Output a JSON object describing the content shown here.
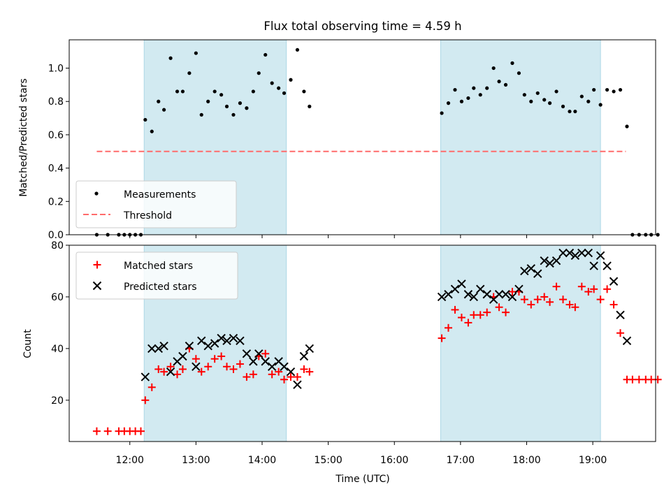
{
  "colors": {
    "shade": "#add8e6",
    "measurement": "#000000",
    "threshold": "#ff6b6b",
    "matched": "#ff0000",
    "predicted": "#000000"
  },
  "chart_data": [
    {
      "type": "scatter",
      "title": "Flux total observing time = 4.59 h",
      "xlabel": "",
      "ylabel": "Matched/Predicted stars",
      "xlim": [
        "11:05",
        "19:57"
      ],
      "ylim": [
        0,
        1.17
      ],
      "yticks": [
        "0.0",
        "0.2",
        "0.4",
        "0.6",
        "0.8",
        "1.0"
      ],
      "shaded_intervals": [
        [
          "12:13",
          "14:22"
        ],
        [
          "16:42",
          "19:07"
        ]
      ],
      "legend": {
        "position": "lower-left",
        "entries": [
          "Measurements",
          "Threshold"
        ]
      },
      "threshold": {
        "name": "Threshold",
        "y": 0.5,
        "x_range": [
          "11:30",
          "19:30"
        ],
        "style": "dashed"
      },
      "series": [
        {
          "name": "Measurements",
          "marker": "dot",
          "points": [
            [
              "11:30",
              0
            ],
            [
              "11:40",
              0
            ],
            [
              "11:50",
              0
            ],
            [
              "11:55",
              0
            ],
            [
              "12:00",
              0
            ],
            [
              "12:05",
              0
            ],
            [
              "12:10",
              0
            ],
            [
              "12:14",
              0.69
            ],
            [
              "12:20",
              0.62
            ],
            [
              "12:26",
              0.8
            ],
            [
              "12:31",
              0.75
            ],
            [
              "12:37",
              1.06
            ],
            [
              "12:43",
              0.86
            ],
            [
              "12:48",
              0.86
            ],
            [
              "12:54",
              0.97
            ],
            [
              "13:00",
              1.09
            ],
            [
              "13:05",
              0.72
            ],
            [
              "13:11",
              0.8
            ],
            [
              "13:17",
              0.86
            ],
            [
              "13:23",
              0.84
            ],
            [
              "13:28",
              0.77
            ],
            [
              "13:34",
              0.72
            ],
            [
              "13:40",
              0.79
            ],
            [
              "13:46",
              0.76
            ],
            [
              "13:52",
              0.86
            ],
            [
              "13:57",
              0.97
            ],
            [
              "14:03",
              1.08
            ],
            [
              "14:09",
              0.91
            ],
            [
              "14:15",
              0.88
            ],
            [
              "14:20",
              0.85
            ],
            [
              "14:26",
              0.93
            ],
            [
              "14:32",
              1.11
            ],
            [
              "14:38",
              0.86
            ],
            [
              "14:43",
              0.77
            ],
            [
              "16:43",
              0.73
            ],
            [
              "16:49",
              0.79
            ],
            [
              "16:55",
              0.87
            ],
            [
              "17:01",
              0.8
            ],
            [
              "17:07",
              0.82
            ],
            [
              "17:12",
              0.88
            ],
            [
              "17:18",
              0.84
            ],
            [
              "17:24",
              0.88
            ],
            [
              "17:30",
              1.0
            ],
            [
              "17:35",
              0.92
            ],
            [
              "17:41",
              0.9
            ],
            [
              "17:47",
              1.03
            ],
            [
              "17:53",
              0.97
            ],
            [
              "17:58",
              0.84
            ],
            [
              "18:04",
              0.8
            ],
            [
              "18:10",
              0.85
            ],
            [
              "18:16",
              0.81
            ],
            [
              "18:21",
              0.79
            ],
            [
              "18:27",
              0.86
            ],
            [
              "18:33",
              0.77
            ],
            [
              "18:39",
              0.74
            ],
            [
              "18:44",
              0.74
            ],
            [
              "18:50",
              0.83
            ],
            [
              "18:56",
              0.8
            ],
            [
              "19:01",
              0.87
            ],
            [
              "19:07",
              0.78
            ],
            [
              "19:13",
              0.87
            ],
            [
              "19:19",
              0.86
            ],
            [
              "19:25",
              0.87
            ],
            [
              "19:31",
              0.65
            ],
            [
              "19:36",
              0
            ],
            [
              "19:42",
              0
            ],
            [
              "19:48",
              0
            ],
            [
              "19:53",
              0
            ],
            [
              "19:59",
              0
            ]
          ]
        }
      ]
    },
    {
      "type": "scatter",
      "title": "",
      "xlabel": "Time (UTC)",
      "ylabel": "Count",
      "xlim": [
        "11:05",
        "19:57"
      ],
      "ylim": [
        4,
        80
      ],
      "xticks": [
        "12:00",
        "13:00",
        "14:00",
        "15:00",
        "16:00",
        "17:00",
        "18:00",
        "19:00"
      ],
      "yticks": [
        "20",
        "40",
        "60",
        "80"
      ],
      "shaded_intervals": [
        [
          "12:13",
          "14:22"
        ],
        [
          "16:42",
          "19:07"
        ]
      ],
      "legend": {
        "position": "upper-left",
        "entries": [
          "Matched stars",
          "Predicted stars"
        ]
      },
      "series": [
        {
          "name": "Matched stars",
          "marker": "plus",
          "points": [
            [
              "11:30",
              8
            ],
            [
              "11:40",
              8
            ],
            [
              "11:50",
              8
            ],
            [
              "11:55",
              8
            ],
            [
              "12:00",
              8
            ],
            [
              "12:05",
              8
            ],
            [
              "12:10",
              8
            ],
            [
              "12:14",
              20
            ],
            [
              "12:20",
              25
            ],
            [
              "12:26",
              32
            ],
            [
              "12:31",
              31
            ],
            [
              "12:37",
              33
            ],
            [
              "12:43",
              30
            ],
            [
              "12:48",
              32
            ],
            [
              "12:54",
              40
            ],
            [
              "13:00",
              36
            ],
            [
              "13:05",
              31
            ],
            [
              "13:11",
              33
            ],
            [
              "13:17",
              36
            ],
            [
              "13:23",
              37
            ],
            [
              "13:28",
              33
            ],
            [
              "13:34",
              32
            ],
            [
              "13:40",
              34
            ],
            [
              "13:46",
              29
            ],
            [
              "13:52",
              30
            ],
            [
              "13:57",
              37
            ],
            [
              "14:03",
              38
            ],
            [
              "14:09",
              30
            ],
            [
              "14:15",
              31
            ],
            [
              "14:20",
              28
            ],
            [
              "14:26",
              29
            ],
            [
              "14:32",
              29
            ],
            [
              "14:38",
              32
            ],
            [
              "14:43",
              31
            ],
            [
              "16:43",
              44
            ],
            [
              "16:49",
              48
            ],
            [
              "16:55",
              55
            ],
            [
              "17:01",
              52
            ],
            [
              "17:07",
              50
            ],
            [
              "17:12",
              53
            ],
            [
              "17:18",
              53
            ],
            [
              "17:24",
              54
            ],
            [
              "17:30",
              60
            ],
            [
              "17:35",
              56
            ],
            [
              "17:41",
              54
            ],
            [
              "17:47",
              62
            ],
            [
              "17:53",
              62
            ],
            [
              "17:58",
              59
            ],
            [
              "18:04",
              57
            ],
            [
              "18:10",
              59
            ],
            [
              "18:16",
              60
            ],
            [
              "18:21",
              58
            ],
            [
              "18:27",
              64
            ],
            [
              "18:33",
              59
            ],
            [
              "18:39",
              57
            ],
            [
              "18:44",
              56
            ],
            [
              "18:50",
              64
            ],
            [
              "18:56",
              62
            ],
            [
              "19:01",
              63
            ],
            [
              "19:07",
              59
            ],
            [
              "19:13",
              63
            ],
            [
              "19:19",
              57
            ],
            [
              "19:25",
              46
            ],
            [
              "19:31",
              28
            ],
            [
              "19:36",
              28
            ],
            [
              "19:42",
              28
            ],
            [
              "19:48",
              28
            ],
            [
              "19:53",
              28
            ],
            [
              "19:59",
              28
            ]
          ]
        },
        {
          "name": "Predicted stars",
          "marker": "x",
          "points": [
            [
              "12:14",
              29
            ],
            [
              "12:20",
              40
            ],
            [
              "12:26",
              40
            ],
            [
              "12:31",
              41
            ],
            [
              "12:37",
              31
            ],
            [
              "12:43",
              35
            ],
            [
              "12:48",
              37
            ],
            [
              "12:54",
              41
            ],
            [
              "13:00",
              33
            ],
            [
              "13:05",
              43
            ],
            [
              "13:11",
              41
            ],
            [
              "13:17",
              42
            ],
            [
              "13:23",
              44
            ],
            [
              "13:28",
              43
            ],
            [
              "13:34",
              44
            ],
            [
              "13:40",
              43
            ],
            [
              "13:46",
              38
            ],
            [
              "13:52",
              35
            ],
            [
              "13:57",
              38
            ],
            [
              "14:03",
              35
            ],
            [
              "14:09",
              33
            ],
            [
              "14:15",
              35
            ],
            [
              "14:20",
              33
            ],
            [
              "14:26",
              31
            ],
            [
              "14:32",
              26
            ],
            [
              "14:38",
              37
            ],
            [
              "14:43",
              40
            ],
            [
              "16:43",
              60
            ],
            [
              "16:49",
              61
            ],
            [
              "16:55",
              63
            ],
            [
              "17:01",
              65
            ],
            [
              "17:07",
              61
            ],
            [
              "17:12",
              60
            ],
            [
              "17:18",
              63
            ],
            [
              "17:24",
              61
            ],
            [
              "17:30",
              59
            ],
            [
              "17:35",
              61
            ],
            [
              "17:41",
              61
            ],
            [
              "17:47",
              60
            ],
            [
              "17:53",
              63
            ],
            [
              "17:58",
              70
            ],
            [
              "18:04",
              71
            ],
            [
              "18:10",
              69
            ],
            [
              "18:16",
              74
            ],
            [
              "18:21",
              73
            ],
            [
              "18:27",
              74
            ],
            [
              "18:33",
              77
            ],
            [
              "18:39",
              77
            ],
            [
              "18:44",
              76
            ],
            [
              "18:50",
              77
            ],
            [
              "18:56",
              77
            ],
            [
              "19:01",
              72
            ],
            [
              "19:07",
              76
            ],
            [
              "19:13",
              72
            ],
            [
              "19:19",
              66
            ],
            [
              "19:25",
              53
            ],
            [
              "19:31",
              43
            ]
          ]
        }
      ]
    }
  ]
}
